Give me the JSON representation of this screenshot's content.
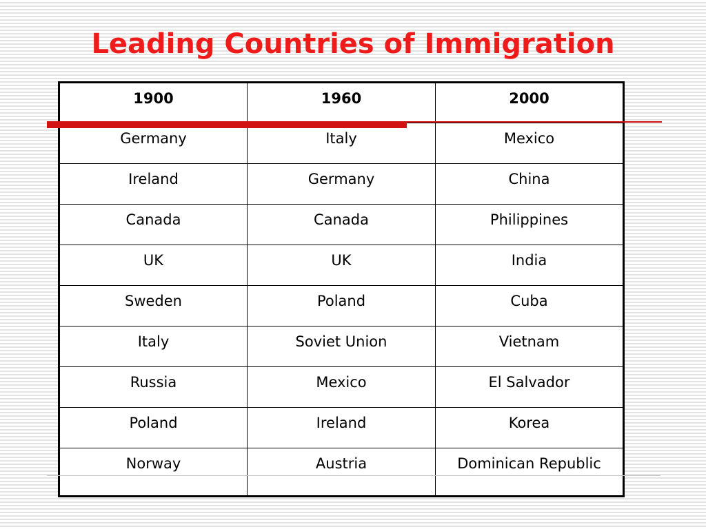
{
  "title": "Leading Countries of Immigration",
  "table": {
    "headers": [
      "1900",
      "1960",
      "2000"
    ],
    "rows": [
      [
        "Germany",
        "Italy",
        "Mexico"
      ],
      [
        "Ireland",
        "Germany",
        "China"
      ],
      [
        "Canada",
        "Canada",
        "Philippines"
      ],
      [
        "UK",
        "UK",
        "India"
      ],
      [
        "Sweden",
        "Poland",
        "Cuba"
      ],
      [
        "Italy",
        "Soviet Union",
        "Vietnam"
      ],
      [
        "Russia",
        "Mexico",
        "El Salvador"
      ],
      [
        "Poland",
        "Ireland",
        "Korea"
      ],
      [
        "Norway",
        "Austria",
        "Dominican Republic"
      ]
    ]
  },
  "colors": {
    "title": "#ef1a1a",
    "accent": "#d11313",
    "table_border": "#000000"
  }
}
